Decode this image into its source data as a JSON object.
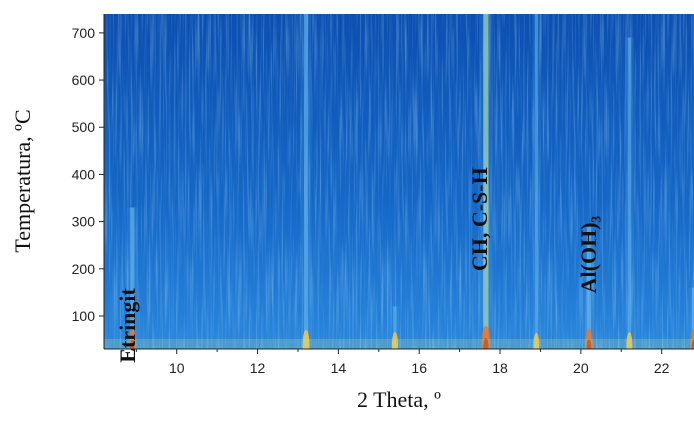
{
  "chart_data": {
    "type": "heatmap",
    "title": "",
    "xlabel": "2 Theta, º",
    "ylabel": "Temperatura, ºC",
    "xlim": [
      8.2,
      22.8
    ],
    "ylim": [
      30,
      740
    ],
    "x_ticks": [
      10,
      12,
      14,
      16,
      18,
      20,
      22
    ],
    "y_ticks": [
      100,
      200,
      300,
      400,
      500,
      600,
      700
    ],
    "x_tick_labels": [
      "10",
      "12",
      "14",
      "16",
      "18",
      "20",
      "22"
    ],
    "y_tick_labels": [
      "100",
      "200",
      "300",
      "400",
      "500",
      "600",
      "700"
    ],
    "colormap": [
      "#0a4fae",
      "#1f6fd0",
      "#3d93e4",
      "#7cc6ef",
      "#c8e89a",
      "#f2c84b",
      "#e8742a",
      "#b83214"
    ],
    "peaks": [
      {
        "two_theta": 8.9,
        "t_max": 330,
        "intensity": 0.55
      },
      {
        "two_theta": 13.2,
        "t_max": 740,
        "intensity": 0.5
      },
      {
        "two_theta": 15.4,
        "t_max": 120,
        "intensity": 0.35
      },
      {
        "two_theta": 17.65,
        "t_max": 740,
        "intensity": 0.8
      },
      {
        "two_theta": 18.9,
        "t_max": 740,
        "intensity": 0.3
      },
      {
        "two_theta": 20.2,
        "t_max": 290,
        "intensity": 0.6
      },
      {
        "two_theta": 21.2,
        "t_max": 690,
        "intensity": 0.35
      },
      {
        "two_theta": 22.8,
        "t_max": 160,
        "intensity": 0.6
      }
    ],
    "annotations": [
      {
        "text": "Etringit",
        "x": 8.8,
        "y": 80
      },
      {
        "text": "CH, C-S-H",
        "x": 17.5,
        "y": 305
      },
      {
        "text": "Al(OH)₃",
        "x": 20.2,
        "y": 230
      }
    ]
  }
}
